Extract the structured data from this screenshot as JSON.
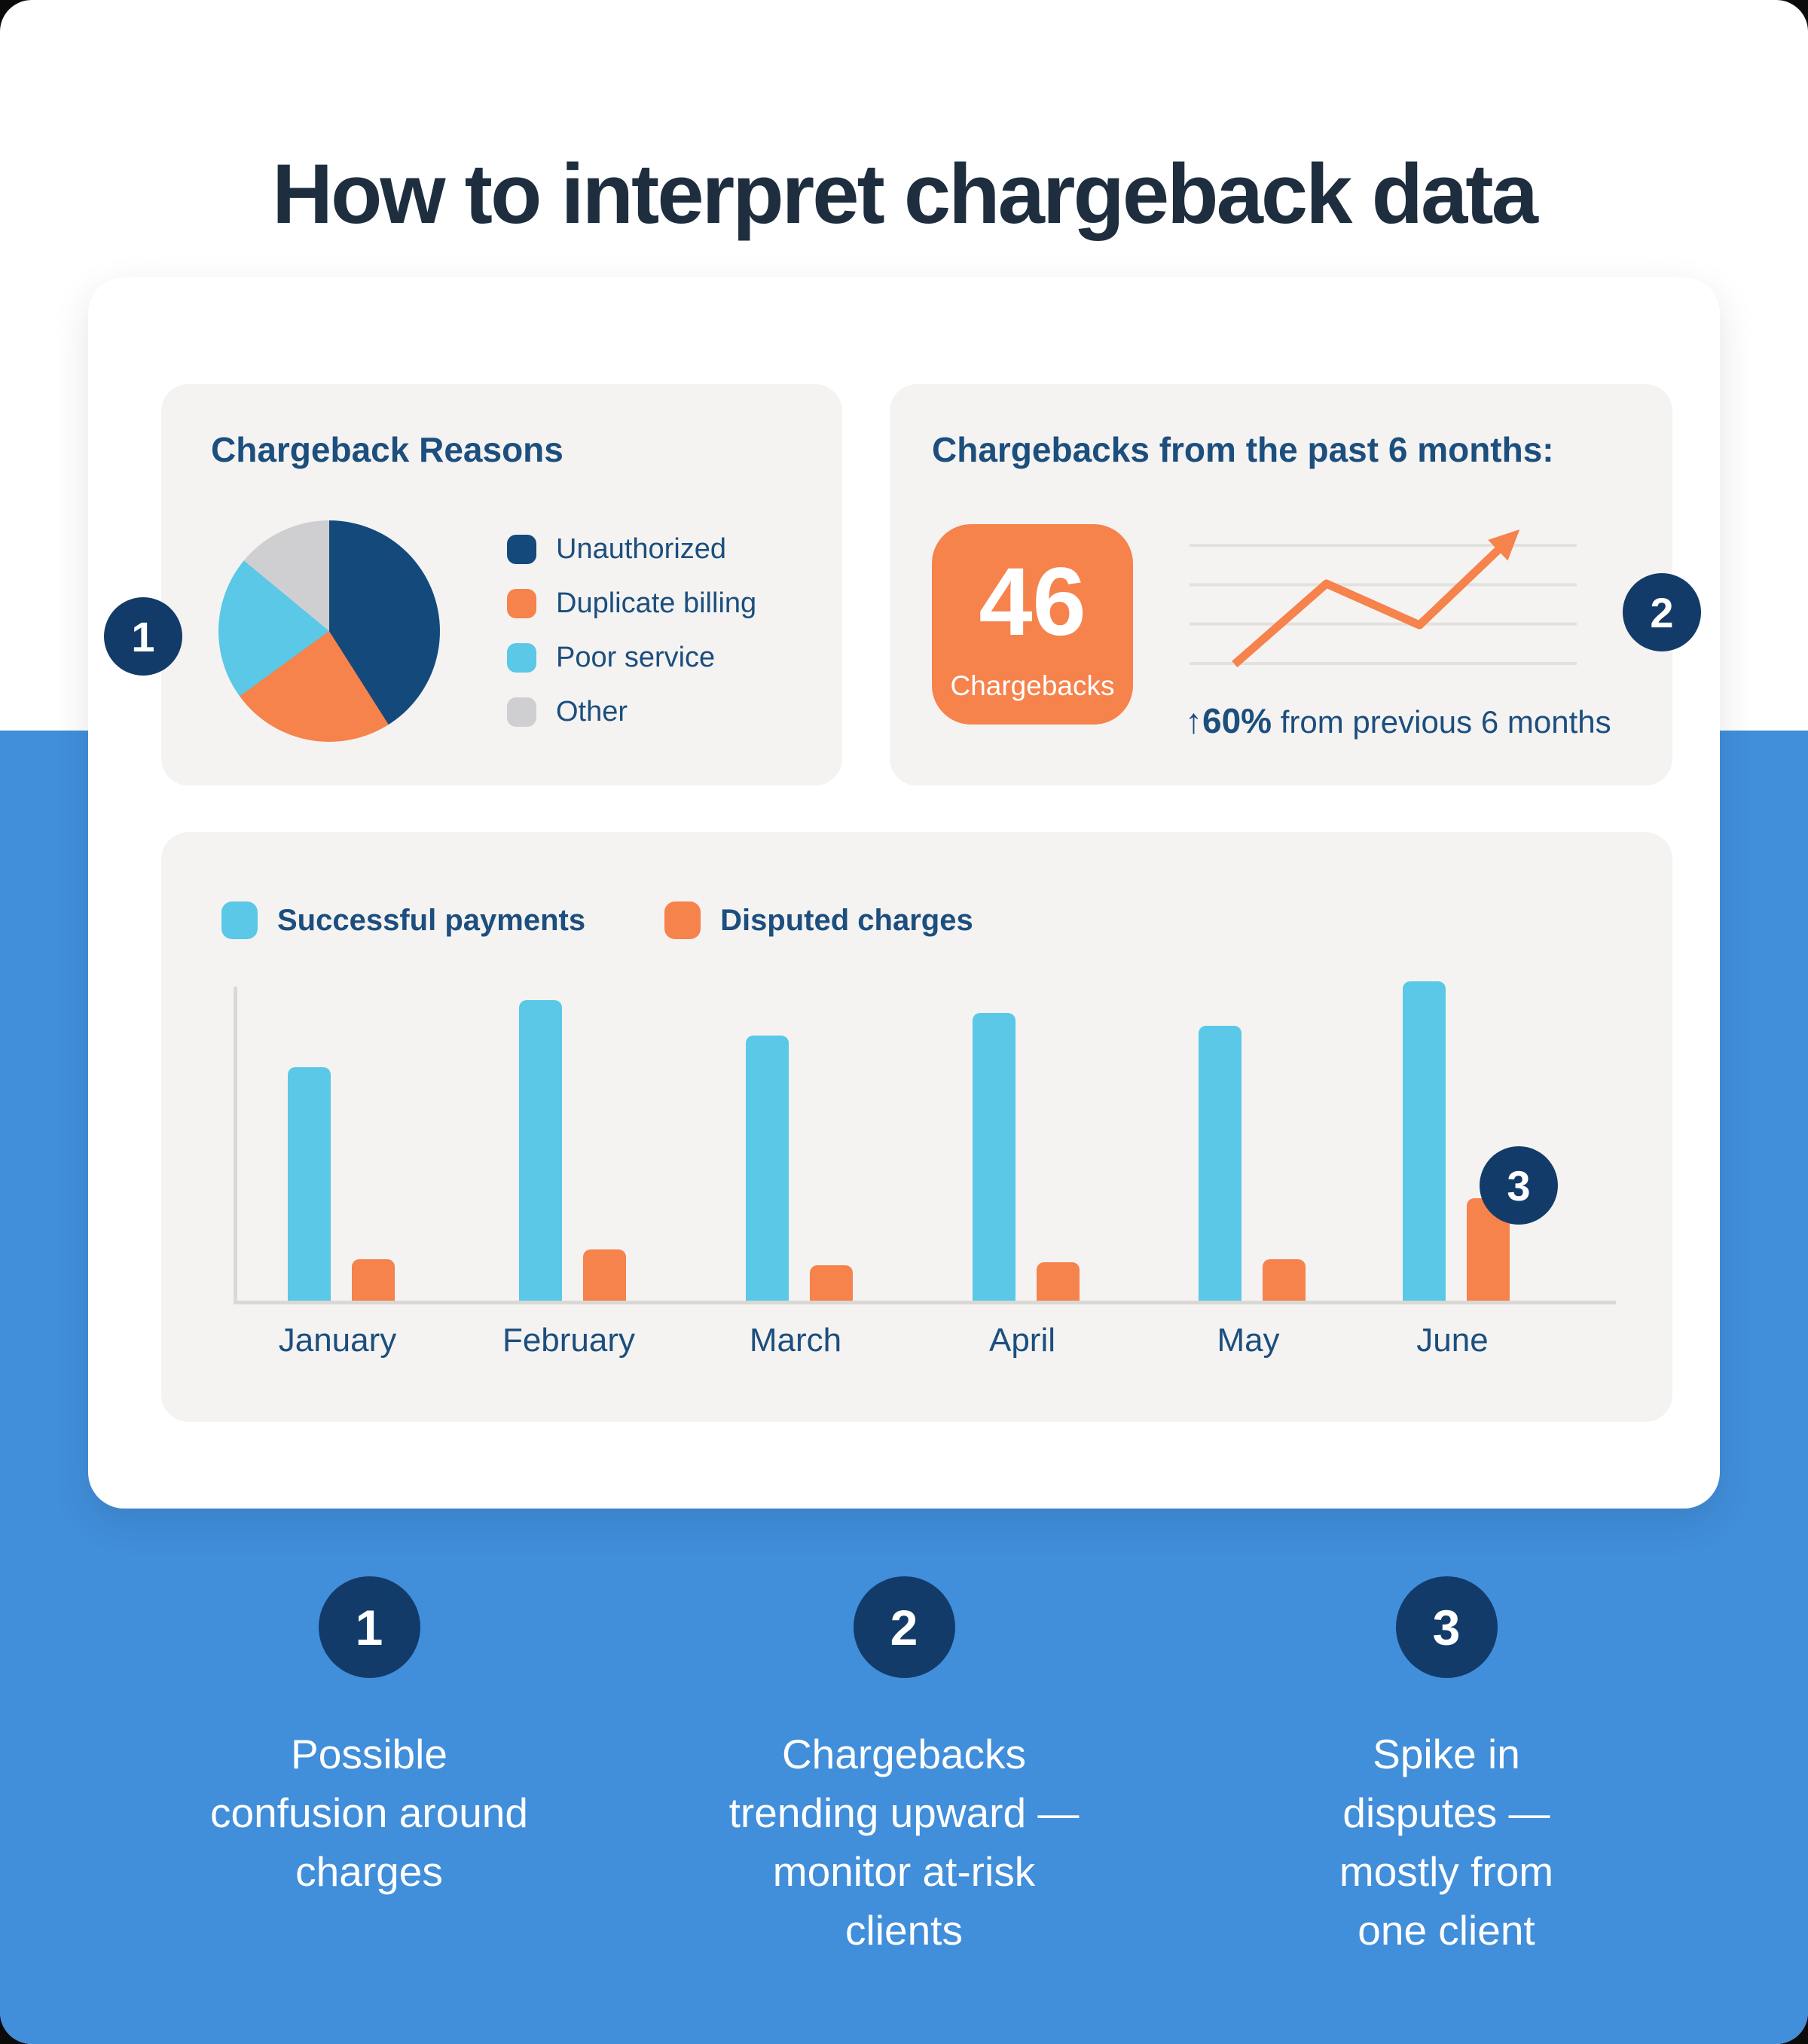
{
  "title": "How to interpret chargeback data",
  "colors": {
    "title_text": "#1E2E3E",
    "heading_blue": "#1C4E7E",
    "badge_navy": "#133B69",
    "pie_navy": "#14497C",
    "orange": "#F6824C",
    "cyan": "#5AC8E6",
    "gray_swatch": "#CFCFD1",
    "panel_background": "#F4F3F1",
    "page_bottom_blue": "#418EDA"
  },
  "panels": {
    "pie": {
      "heading": "Chargeback Reasons",
      "badge": "1"
    },
    "trend": {
      "heading": "Chargebacks from the past 6 months:",
      "badge": "2",
      "stat_value": "46",
      "stat_label": "Chargebacks",
      "caption_bold": "↑60%",
      "caption_rest": " from previous 6 months"
    },
    "bars": {
      "badge": "3"
    }
  },
  "chart_data": [
    {
      "type": "pie",
      "title": "Chargeback Reasons",
      "labels": [
        "Unauthorized",
        "Duplicate billing",
        "Poor service",
        "Other"
      ],
      "values": [
        41,
        24,
        21,
        14
      ],
      "colors": [
        "#14497C",
        "#F6824C",
        "#5AC8E6",
        "#CFCFD1"
      ],
      "legend_position": "right",
      "units": "percent of pie, estimated from slice angles"
    },
    {
      "type": "line",
      "title": "Chargebacks from the past 6 months:",
      "stat_value": "46",
      "stat_label": "Chargebacks",
      "annotation": "↑60% from previous 6 months",
      "gridline_count": 4,
      "line_color": "#F6824C",
      "points_pct": [
        [
          12.8,
          12.2
        ],
        [
          35.8,
          58.7
        ],
        [
          59.1,
          34.8
        ],
        [
          84.2,
          90.0
        ]
      ],
      "shape": "rises to a peak, dips, then climbs past top gridline ending in an arrowhead"
    },
    {
      "type": "bar",
      "categories": [
        "January",
        "February",
        "March",
        "April",
        "May",
        "June"
      ],
      "series": [
        {
          "name": "Successful payments",
          "color": "#5AC8E6",
          "values": [
            73,
            94,
            83,
            90,
            86,
            100
          ]
        },
        {
          "name": "Disputed charges",
          "color": "#F6824C",
          "values": [
            13,
            16,
            11,
            12,
            13,
            32
          ]
        }
      ],
      "ylim": [
        0,
        100
      ],
      "grid": false,
      "legend_position": "top-left",
      "units": "relative bar height, % of tallest bar (no numeric axis shown)"
    }
  ],
  "callouts": [
    {
      "number": "1",
      "text": "Possible\nconfusion around\ncharges"
    },
    {
      "number": "2",
      "text": "Chargebacks\ntrending upward —\nmonitor at-risk\nclients"
    },
    {
      "number": "3",
      "text": "Spike in\ndisputes —\nmostly from\none client"
    }
  ]
}
